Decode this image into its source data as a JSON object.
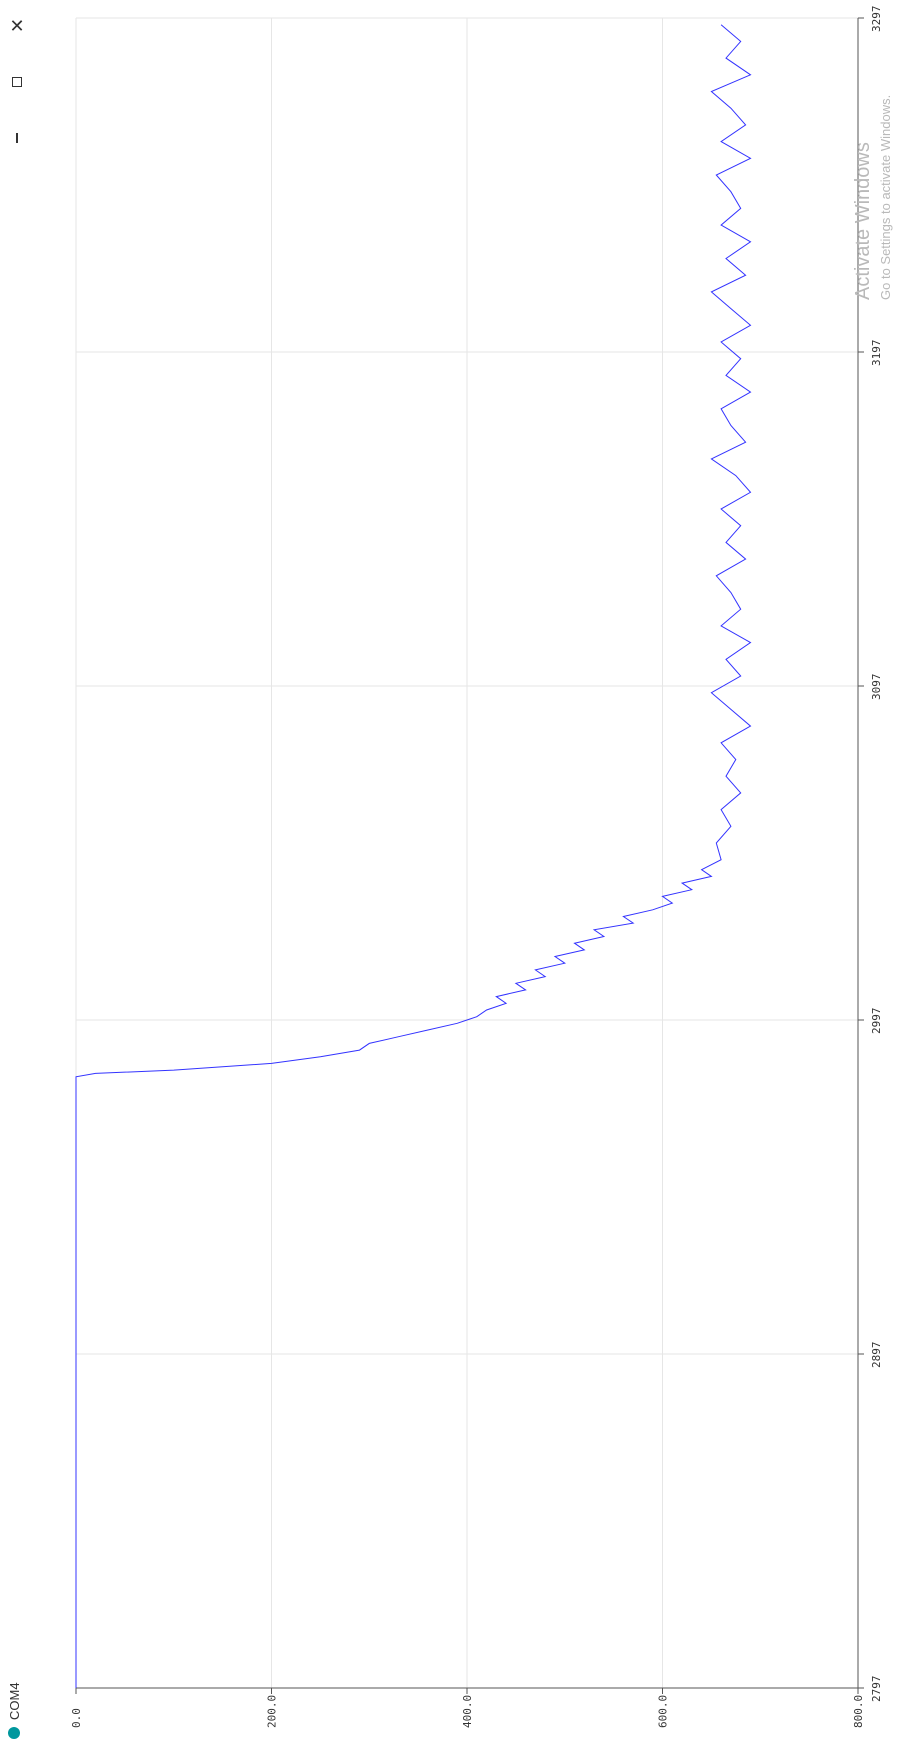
{
  "window": {
    "title": "COM4",
    "controls": {
      "close_icon": "close-icon",
      "maximize_icon": "maximize-icon",
      "minimize_icon": "minimize-icon"
    },
    "status_color": "#00979d"
  },
  "watermark": {
    "line1": "Activate Windows",
    "line2": "Go to Settings to activate Windows."
  },
  "chart_data": {
    "type": "line",
    "orientation": "rotated-90",
    "title": "",
    "xlabel": "",
    "ylabel": "",
    "xlim": [
      2797,
      3297
    ],
    "ylim": [
      0,
      800
    ],
    "x_ticks": [
      "2797",
      "2897",
      "2997",
      "3097",
      "3197",
      "3297"
    ],
    "y_ticks": [
      "800.0",
      "600.0",
      "400.0",
      "200.0",
      "0.0"
    ],
    "grid": true,
    "series": [
      {
        "color": "#3333ff",
        "x": [
          2797,
          2980,
          2981,
          2982,
          2983,
          2984,
          2986,
          2988,
          2990,
          2992,
          2994,
          2996,
          2997,
          2998,
          3000,
          3002,
          3004,
          3006,
          3008,
          3010,
          3012,
          3014,
          3016,
          3018,
          3020,
          3022,
          3024,
          3026,
          3028,
          3030,
          3032,
          3034,
          3036,
          3038,
          3040,
          3042,
          3045,
          3050,
          3055,
          3060,
          3065,
          3070,
          3075,
          3080,
          3085,
          3090,
          3095,
          3100,
          3105,
          3110,
          3115,
          3120,
          3125,
          3130,
          3135,
          3140,
          3145,
          3150,
          3155,
          3160,
          3165,
          3170,
          3175,
          3180,
          3185,
          3190,
          3195,
          3200,
          3205,
          3210,
          3215,
          3220,
          3225,
          3230,
          3235,
          3240,
          3245,
          3250,
          3255,
          3260,
          3265,
          3270,
          3275,
          3280,
          3285,
          3290,
          3295
        ],
        "y": [
          0,
          0,
          20,
          100,
          150,
          200,
          250,
          290,
          300,
          330,
          360,
          390,
          400,
          410,
          420,
          440,
          430,
          460,
          450,
          480,
          470,
          500,
          490,
          520,
          510,
          540,
          530,
          570,
          560,
          590,
          610,
          600,
          630,
          620,
          650,
          640,
          660,
          655,
          670,
          660,
          680,
          665,
          675,
          660,
          690,
          670,
          650,
          680,
          665,
          690,
          660,
          680,
          670,
          655,
          685,
          665,
          680,
          660,
          690,
          675,
          650,
          685,
          670,
          660,
          690,
          665,
          680,
          660,
          690,
          670,
          650,
          685,
          665,
          690,
          660,
          680,
          670,
          655,
          690,
          660,
          685,
          670,
          650,
          690,
          665,
          680,
          660
        ]
      }
    ]
  }
}
